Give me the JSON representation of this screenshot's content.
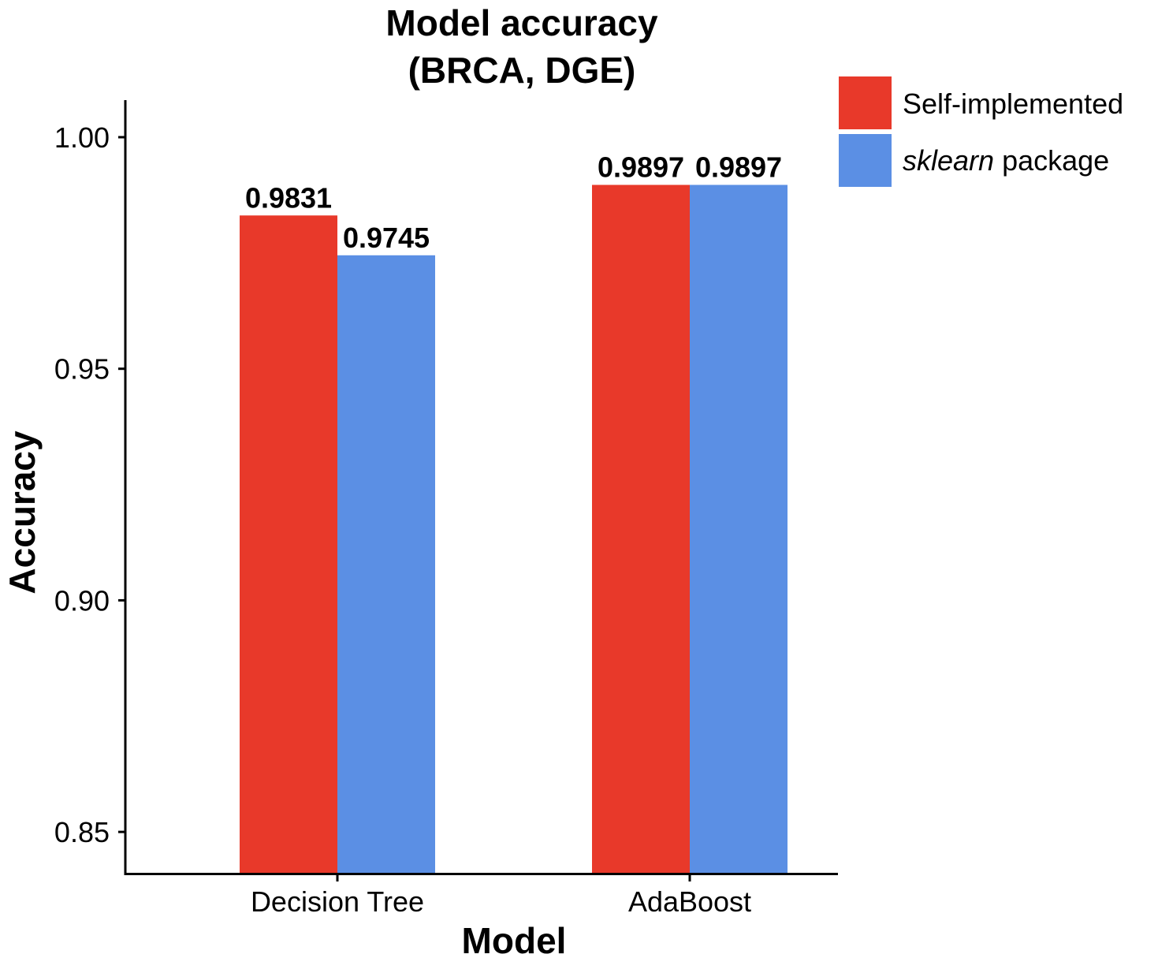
{
  "chart_data": {
    "type": "bar",
    "title_lines": [
      "Model accuracy",
      "(BRCA, DGE)"
    ],
    "xlabel": "Model",
    "ylabel": "Accuracy",
    "categories": [
      "Decision Tree",
      "AdaBoost"
    ],
    "series": [
      {
        "name": "Self-implemented",
        "values": [
          0.9831,
          0.9897
        ],
        "color": "#e8392a"
      },
      {
        "name": "sklearn package",
        "values": [
          0.9745,
          0.9897
        ],
        "color": "#5b8fe4"
      }
    ],
    "data_labels": [
      [
        "0.9831",
        "0.9745"
      ],
      [
        "0.9897",
        "0.9897"
      ]
    ],
    "ylim": [
      0.841,
      1.008
    ],
    "yticks": [
      0.85,
      0.9,
      0.95,
      1.0
    ],
    "ytick_labels": [
      "0.85",
      "0.90",
      "0.95",
      "1.00"
    ],
    "legend": {
      "position": "top-right",
      "entries": [
        {
          "prefix_italic": "",
          "text": "Self-implemented"
        },
        {
          "prefix_italic": "sklearn",
          "text": " package"
        }
      ]
    },
    "grid": false
  }
}
